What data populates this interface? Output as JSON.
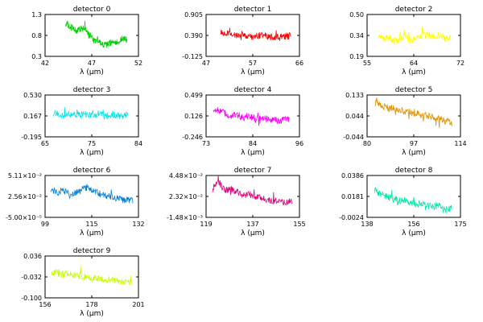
{
  "figure": {
    "xlabel": "λ (µm)"
  },
  "chart_data": [
    {
      "type": "line",
      "title": "detector 0",
      "xlim": [
        42,
        52
      ],
      "ylim": [
        0.3,
        1.3
      ],
      "xticks": [
        "42",
        "47",
        "52"
      ],
      "yticks": [
        "0.3",
        "0.8",
        "1.3"
      ],
      "color": "#00d000",
      "x_range": [
        44.2,
        50.8
      ],
      "y_path": [
        1.1,
        1.0,
        0.92,
        0.95,
        1.0,
        0.82,
        0.66,
        0.7,
        0.55,
        0.6,
        0.66,
        0.62,
        0.72,
        0.7
      ]
    },
    {
      "type": "line",
      "title": "detector 1",
      "xlim": [
        47,
        66
      ],
      "ylim": [
        -0.125,
        0.905
      ],
      "xticks": [
        "47",
        "57",
        "66"
      ],
      "yticks": [
        "-0.125",
        "0.390",
        "0.905"
      ],
      "color": "#ff0000",
      "x_range": [
        50.0,
        64.2
      ],
      "y_path": [
        0.5,
        0.43,
        0.45,
        0.38,
        0.42,
        0.36,
        0.34,
        0.4,
        0.38,
        0.36,
        0.35,
        0.37,
        0.36,
        0.38
      ]
    },
    {
      "type": "line",
      "title": "detector 2",
      "xlim": [
        55,
        72
      ],
      "ylim": [
        0.19,
        0.5
      ],
      "xticks": [
        "55",
        "64",
        "72"
      ],
      "yticks": [
        "0.19",
        "0.34",
        "0.50"
      ],
      "color": "#ffff00",
      "x_range": [
        57.0,
        70.3
      ],
      "y_path": [
        0.34,
        0.32,
        0.33,
        0.3,
        0.32,
        0.34,
        0.31,
        0.33,
        0.34,
        0.36,
        0.33,
        0.35,
        0.31,
        0.34
      ]
    },
    {
      "type": "line",
      "title": "detector 3",
      "xlim": [
        65,
        84
      ],
      "ylim": [
        -0.195,
        0.53
      ],
      "xticks": [
        "65",
        "75",
        "84"
      ],
      "yticks": [
        "-0.195",
        "0.167",
        "0.530"
      ],
      "color": "#00e8e8",
      "x_range": [
        66.7,
        81.8
      ],
      "y_path": [
        0.22,
        0.18,
        0.16,
        0.2,
        0.19,
        0.18,
        0.2,
        0.17,
        0.21,
        0.16,
        0.19,
        0.18,
        0.15,
        0.2
      ]
    },
    {
      "type": "line",
      "title": "detector 4",
      "xlim": [
        73,
        96
      ],
      "ylim": [
        -0.246,
        0.499
      ],
      "xticks": [
        "73",
        "84",
        "96"
      ],
      "yticks": [
        "-0.246",
        "0.126",
        "0.499"
      ],
      "color": "#ff00ff",
      "x_range": [
        74.8,
        93.5
      ],
      "y_path": [
        0.29,
        0.2,
        0.17,
        0.12,
        0.15,
        0.1,
        0.12,
        0.08,
        0.1,
        0.07,
        0.06,
        0.04,
        0.06,
        0.05
      ]
    },
    {
      "type": "line",
      "title": "detector 5",
      "xlim": [
        80,
        114
      ],
      "ylim": [
        -0.044,
        0.133
      ],
      "xticks": [
        "80",
        "97",
        "114"
      ],
      "yticks": [
        "-0.044",
        "0.044",
        "0.133"
      ],
      "color": "#e09000",
      "x_range": [
        83.0,
        111.0
      ],
      "y_path": [
        0.1,
        0.09,
        0.08,
        0.075,
        0.07,
        0.065,
        0.06,
        0.055,
        0.05,
        0.045,
        0.04,
        0.03,
        0.02,
        0.012
      ]
    },
    {
      "type": "line",
      "title": "detector 6",
      "xlim": [
        99,
        132
      ],
      "ylim": [
        -5e-05,
        0.051
      ],
      "xticks": [
        "99",
        "115",
        "132"
      ],
      "yticks": [
        "-5.00×10⁻⁵",
        "2.56×10⁻²",
        "5.11×10⁻²"
      ],
      "color": "#0080e0",
      "x_range": [
        101.0,
        130.0
      ],
      "y_path": [
        0.035,
        0.03,
        0.033,
        0.028,
        0.03,
        0.034,
        0.037,
        0.031,
        0.028,
        0.026,
        0.024,
        0.022,
        0.021,
        0.02
      ]
    },
    {
      "type": "line",
      "title": "detector 7",
      "xlim": [
        119,
        155
      ],
      "ylim": [
        -0.00148,
        0.0448
      ],
      "xticks": [
        "119",
        "137",
        "155"
      ],
      "yticks": [
        "-1.48×10⁻³",
        "2.32×10⁻²",
        "4.48×10⁻²"
      ],
      "color": "#e0007a",
      "x_range": [
        121.5,
        152.0
      ],
      "y_path": [
        0.03,
        0.038,
        0.028,
        0.03,
        0.026,
        0.022,
        0.024,
        0.022,
        0.019,
        0.018,
        0.017,
        0.016,
        0.015,
        0.017
      ]
    },
    {
      "type": "line",
      "title": "detector 8",
      "xlim": [
        138,
        175
      ],
      "ylim": [
        -0.0024,
        0.0386
      ],
      "xticks": [
        "138",
        "156",
        "175"
      ],
      "yticks": [
        "-0.0024",
        "0.0181",
        "0.0386"
      ],
      "color": "#00e8a8",
      "x_range": [
        141.0,
        171.5
      ],
      "y_path": [
        0.025,
        0.02,
        0.018,
        0.016,
        0.014,
        0.015,
        0.012,
        0.01,
        0.012,
        0.009,
        0.008,
        0.01,
        0.007,
        0.006
      ]
    },
    {
      "type": "line",
      "title": "detector 9",
      "xlim": [
        156,
        201
      ],
      "ylim": [
        -0.1,
        0.036
      ],
      "xticks": [
        "156",
        "178",
        "201"
      ],
      "yticks": [
        "-0.100",
        "-0.032",
        "0.036"
      ],
      "color": "#c8ff00",
      "x_range": [
        159.0,
        197.5
      ],
      "y_path": [
        -0.015,
        -0.02,
        -0.025,
        -0.022,
        -0.028,
        -0.03,
        -0.032,
        -0.035,
        -0.038,
        -0.04,
        -0.042,
        -0.045,
        -0.047,
        -0.052
      ]
    }
  ]
}
